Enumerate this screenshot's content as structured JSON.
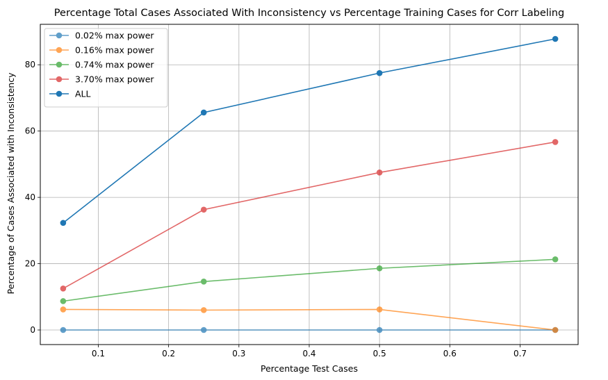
{
  "chart_data": {
    "type": "line",
    "title": "Percentage Total Cases Associated With Inconsistency vs Percentage Training Cases for Corr Labeling",
    "xlabel": "Percentage Test Cases",
    "ylabel": "Percentage of Cases Associated with Inconsistency",
    "xlim": [
      0.0175,
      0.7825
    ],
    "ylim": [
      -4.4,
      92.2
    ],
    "xticks": [
      "0.1",
      "0.2",
      "0.3",
      "0.4",
      "0.5",
      "0.6",
      "0.7"
    ],
    "xtick_values": [
      0.1,
      0.2,
      0.3,
      0.4,
      0.5,
      0.6,
      0.7
    ],
    "yticks": [
      "0",
      "20",
      "40",
      "60",
      "80"
    ],
    "ytick_values": [
      0,
      20,
      40,
      60,
      80
    ],
    "grid": true,
    "legend_position": "top-left",
    "x": [
      0.05,
      0.25,
      0.5,
      0.75
    ],
    "series": [
      {
        "name": "0.02% max power",
        "color": "#1f77b4",
        "opacity": 0.7,
        "values": [
          0.0,
          0.0,
          0.0,
          0.0
        ]
      },
      {
        "name": "0.16% max power",
        "color": "#ff7f0e",
        "opacity": 0.7,
        "values": [
          6.2,
          6.0,
          6.2,
          0.0
        ]
      },
      {
        "name": "0.74% max power",
        "color": "#2ca02c",
        "opacity": 0.7,
        "values": [
          8.7,
          14.6,
          18.6,
          21.3
        ]
      },
      {
        "name": "3.70% max power",
        "color": "#d62728",
        "opacity": 0.7,
        "values": [
          12.5,
          36.3,
          47.5,
          56.7
        ]
      },
      {
        "name": "ALL",
        "color": "#1f77b4",
        "opacity": 1.0,
        "values": [
          32.3,
          65.6,
          77.5,
          87.8
        ]
      }
    ]
  }
}
